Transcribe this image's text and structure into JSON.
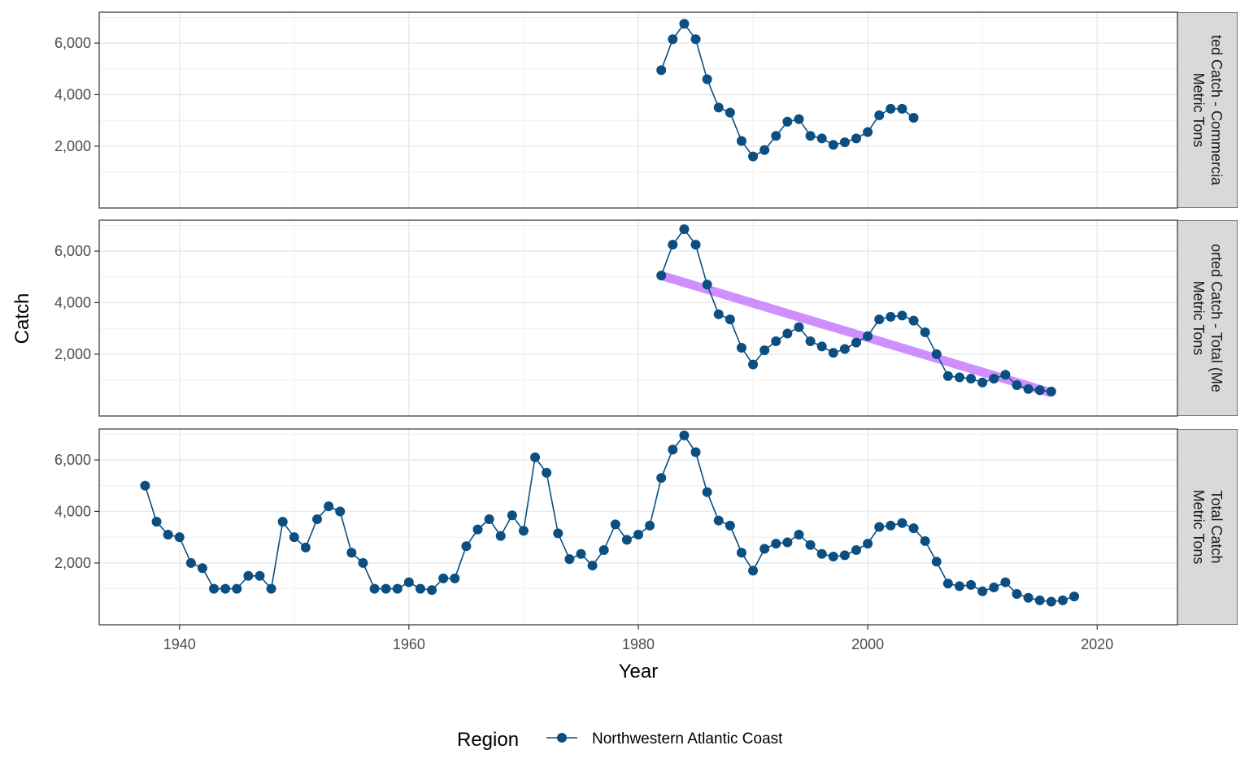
{
  "chart_data": {
    "type": "line",
    "ylabel": "Catch",
    "xlabel": "Year",
    "xlim": [
      1933,
      2027
    ],
    "ylim": [
      -400,
      7200
    ],
    "x_ticks": [
      "1940",
      "1960",
      "1980",
      "2000",
      "2020"
    ],
    "y_ticks": [
      "2,000",
      "4,000",
      "6,000"
    ],
    "legend": {
      "title": "Region",
      "label": "Northwestern Atlantic Coast",
      "position": "bottom"
    },
    "colors": {
      "series": "#0b4f82",
      "trend": "#c77cff",
      "strip_bg": "#d9d9d9",
      "grid": "#ebebeb"
    },
    "panels": [
      {
        "strip_line1": "ted Catch - Commercia",
        "strip_line2": "Metric Tons",
        "x": [
          1982,
          1983,
          1984,
          1985,
          1986,
          1987,
          1988,
          1989,
          1990,
          1991,
          1992,
          1993,
          1994,
          1995,
          1996,
          1997,
          1998,
          1999,
          2000,
          2001,
          2002,
          2003,
          2004
        ],
        "y": [
          4950,
          6150,
          6750,
          6150,
          4600,
          3500,
          3300,
          2200,
          1600,
          1850,
          2400,
          2950,
          3050,
          2400,
          2300,
          2050,
          2150,
          2300,
          2550,
          3200,
          3450,
          3450,
          3100
        ],
        "trend": null
      },
      {
        "strip_line1": "orted Catch - Total (Me",
        "strip_line2": "Metric Tons",
        "x": [
          1982,
          1983,
          1984,
          1985,
          1986,
          1987,
          1988,
          1989,
          1990,
          1991,
          1992,
          1993,
          1994,
          1995,
          1996,
          1997,
          1998,
          1999,
          2000,
          2001,
          2002,
          2003,
          2004,
          2005,
          2006,
          2007,
          2008,
          2009,
          2010,
          2011,
          2012,
          2013,
          2014,
          2015,
          2016
        ],
        "y": [
          5050,
          6250,
          6850,
          6250,
          4700,
          3550,
          3350,
          2250,
          1600,
          2150,
          2500,
          2800,
          3050,
          2500,
          2300,
          2050,
          2200,
          2450,
          2700,
          3350,
          3450,
          3500,
          3300,
          2850,
          2000,
          1150,
          1100,
          1050,
          900,
          1050,
          1200,
          800,
          650,
          600,
          550
        ],
        "trend": {
          "x": [
            1982,
            2016
          ],
          "y": [
            5050,
            500
          ]
        }
      },
      {
        "strip_line1": "Total Catch",
        "strip_line2": "Metric Tons",
        "x": [
          1937,
          1938,
          1939,
          1940,
          1941,
          1942,
          1943,
          1944,
          1945,
          1946,
          1947,
          1948,
          1949,
          1950,
          1951,
          1952,
          1953,
          1954,
          1955,
          1956,
          1957,
          1958,
          1959,
          1960,
          1961,
          1962,
          1963,
          1964,
          1965,
          1966,
          1967,
          1968,
          1969,
          1970,
          1971,
          1972,
          1973,
          1974,
          1975,
          1976,
          1977,
          1978,
          1979,
          1980,
          1981,
          1982,
          1983,
          1984,
          1985,
          1986,
          1987,
          1988,
          1989,
          1990,
          1991,
          1992,
          1993,
          1994,
          1995,
          1996,
          1997,
          1998,
          1999,
          2000,
          2001,
          2002,
          2003,
          2004,
          2005,
          2006,
          2007,
          2008,
          2009,
          2010,
          2011,
          2012,
          2013,
          2014,
          2015,
          2016,
          2017,
          2018
        ],
        "y": [
          5000,
          3600,
          3100,
          3000,
          2000,
          1800,
          1000,
          1000,
          1000,
          1500,
          1500,
          1000,
          3600,
          3000,
          2600,
          3700,
          4200,
          4000,
          2400,
          2000,
          1000,
          1000,
          1000,
          1250,
          1000,
          950,
          1400,
          1400,
          2650,
          3300,
          3700,
          3050,
          3850,
          3250,
          6100,
          5500,
          3150,
          2150,
          2350,
          1900,
          2500,
          3500,
          2900,
          3100,
          3450,
          5300,
          6400,
          6950,
          6300,
          4750,
          3650,
          3450,
          2400,
          1700,
          2550,
          2750,
          2800,
          3100,
          2700,
          2350,
          2250,
          2300,
          2500,
          2750,
          3400,
          3450,
          3550,
          3350,
          2850,
          2050,
          1200,
          1100,
          1150,
          900,
          1050,
          1250,
          800,
          650,
          550,
          500,
          550,
          700
        ]
      }
    ]
  }
}
